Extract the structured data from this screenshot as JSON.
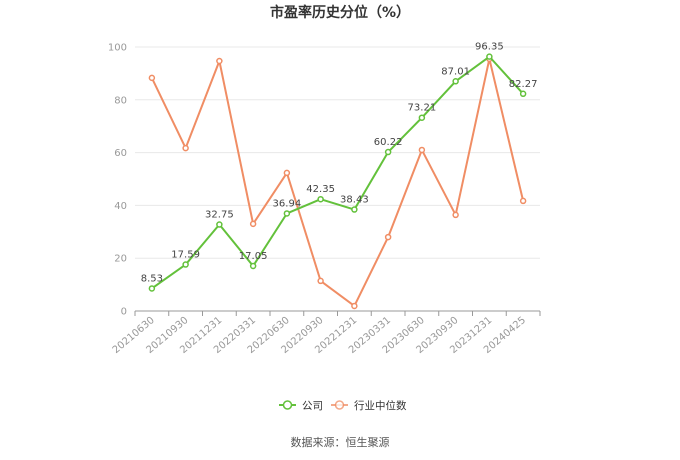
{
  "source": "数据来源：恒生聚源",
  "chart_data": {
    "type": "line",
    "title": "市盈率历史分位（%）",
    "xlabel": "",
    "ylabel": "",
    "categories": [
      "20210630",
      "20210930",
      "20211231",
      "20220331",
      "20220630",
      "20220930",
      "20221231",
      "20230331",
      "20230630",
      "20230930",
      "20231231",
      "20240425"
    ],
    "series": [
      {
        "name": "公司",
        "color": "#63c13b",
        "show_labels": true,
        "values": [
          8.53,
          17.59,
          32.75,
          17.05,
          36.94,
          42.35,
          38.43,
          60.22,
          73.21,
          87.01,
          96.35,
          82.27
        ]
      },
      {
        "name": "行业中位数",
        "color": "#f08d64",
        "show_labels": false,
        "values": [
          88.3,
          61.7,
          94.7,
          33.0,
          52.3,
          11.4,
          1.9,
          28.0,
          61.0,
          36.4,
          95.5,
          41.7
        ]
      }
    ],
    "ylim": [
      0,
      100
    ],
    "yticks": [
      0,
      20,
      40,
      60,
      80,
      100
    ],
    "grid": true,
    "legend": "bottom-center",
    "grid_color": "#e8e8e8",
    "axis_color": "#999999"
  }
}
